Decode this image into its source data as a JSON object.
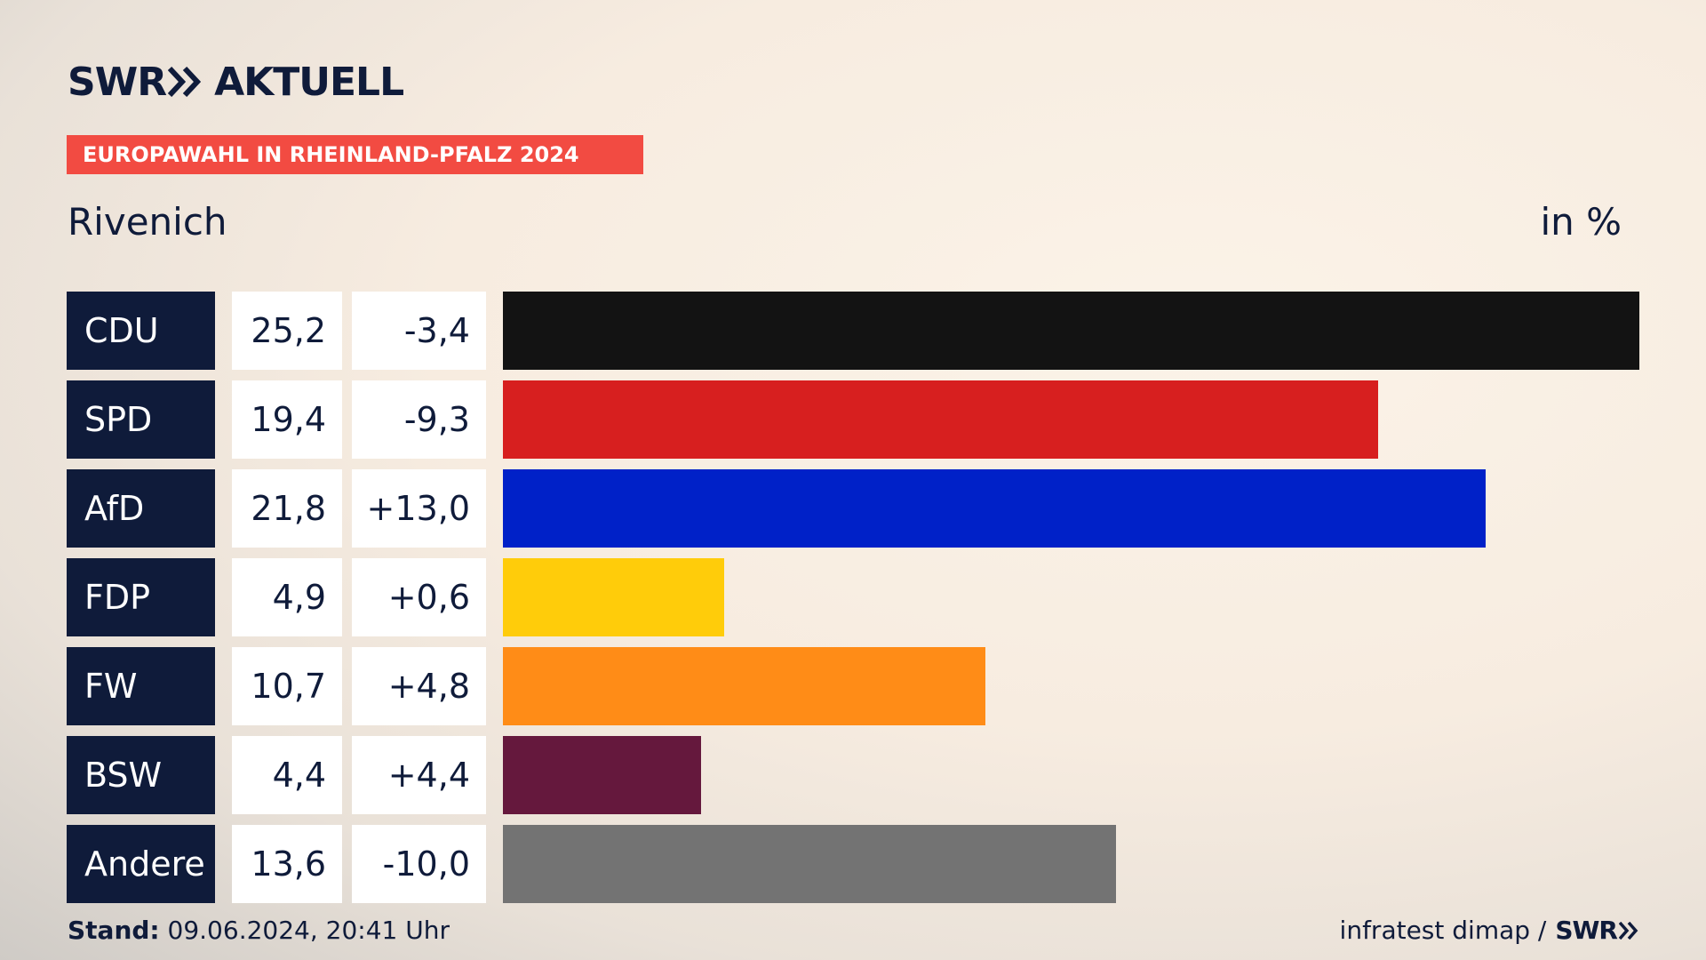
{
  "brand": {
    "logo_text_left": "SWR",
    "logo_text_right": "AKTUELL",
    "logo_icon": "double-chevron-right-icon"
  },
  "banner": {
    "text": "EUROPAWAHL IN RHEINLAND-PFALZ 2024",
    "color": "#f24b42"
  },
  "region": "Rivenich",
  "unit": "in %",
  "footer": {
    "stand_label": "Stand:",
    "stand_value": "09.06.2024, 20:41 Uhr",
    "source_text": "infratest dimap /",
    "source_logo": "SWR",
    "source_icon": "double-chevron-right-icon"
  },
  "chart_data": {
    "type": "bar",
    "orientation": "horizontal",
    "title": "Rivenich",
    "unit": "in %",
    "categories": [
      "CDU",
      "SPD",
      "AfD",
      "FDP",
      "FW",
      "BSW",
      "Andere"
    ],
    "values": [
      25.2,
      19.4,
      21.8,
      4.9,
      10.7,
      4.4,
      13.6
    ],
    "values_display": [
      "25,2",
      "19,4",
      "21,8",
      "4,9",
      "10,7",
      "4,4",
      "13,6"
    ],
    "changes_display": [
      "-3,4",
      "-9,3",
      "+13,0",
      "+0,6",
      "+4,8",
      "+4,4",
      "-10,0"
    ],
    "colors": [
      "#131313",
      "#d71f1f",
      "#0021c8",
      "#ffcc0a",
      "#ff8c17",
      "#65183d",
      "#737373"
    ],
    "grid": false,
    "legend": "none"
  }
}
